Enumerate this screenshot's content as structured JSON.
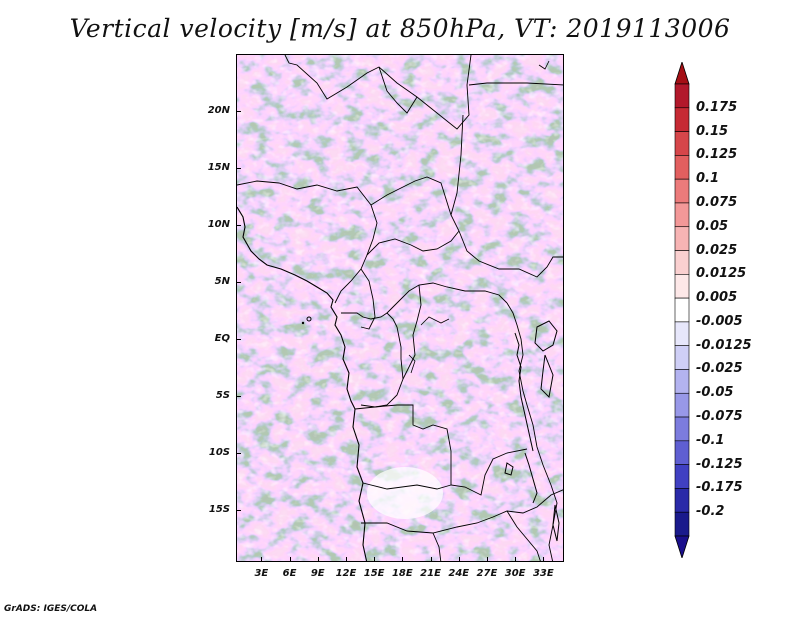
{
  "title": "Vertical velocity [m/s] at 850hPa, VT: 2019113006",
  "credit": "GrADS: IGES/COLA",
  "map": {
    "lat_labels": [
      "20N",
      "15N",
      "10N",
      "5N",
      "EQ",
      "5S",
      "10S",
      "15S"
    ],
    "lat_values": [
      20,
      15,
      10,
      5,
      0,
      -5,
      -10,
      -15
    ],
    "lon_labels": [
      "3E",
      "6E",
      "9E",
      "12E",
      "15E",
      "18E",
      "21E",
      "24E",
      "27E",
      "30E",
      "33E"
    ],
    "lon_values": [
      3,
      6,
      9,
      12,
      15,
      18,
      21,
      24,
      27,
      30,
      33
    ],
    "lon_range": [
      0.3,
      35.2
    ],
    "lat_range": [
      -19.6,
      25.0
    ]
  },
  "colorbar": {
    "labels": [
      "0.175",
      "0.15",
      "0.125",
      "0.1",
      "0.075",
      "0.05",
      "0.025",
      "0.0125",
      "0.005",
      "-0.005",
      "-0.0125",
      "-0.025",
      "-0.05",
      "-0.075",
      "-0.1",
      "-0.125",
      "-0.175",
      "-0.2"
    ],
    "colors": [
      "#b2182b",
      "#c62a34",
      "#d6464a",
      "#e25f5f",
      "#ec7b7b",
      "#f39898",
      "#f7b4b4",
      "#fad0d0",
      "#fde8e8",
      "#ffffff",
      "#e7e7fb",
      "#cfcff6",
      "#b3b3f0",
      "#9898e8",
      "#7c7cde",
      "#5f5fd2",
      "#4040c2",
      "#2a2aa8",
      "#1a1a8c"
    ],
    "top_color": "#a50f15",
    "bottom_color": "#1a0f8c"
  }
}
